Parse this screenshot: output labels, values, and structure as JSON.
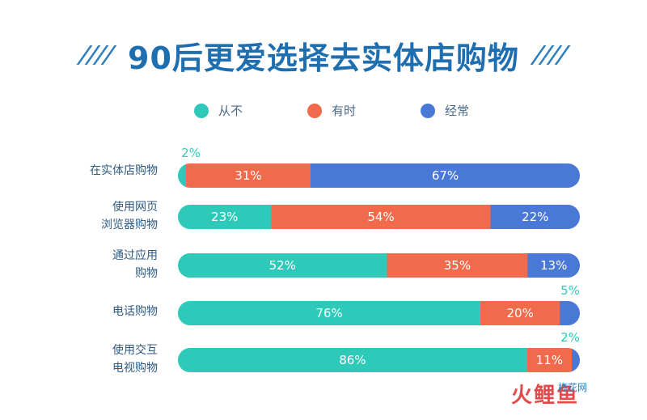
{
  "title": "90后更爱选择去实体店购物",
  "legend": [
    {
      "label": "从不",
      "color": "#2ec9b8"
    },
    {
      "label": "有时",
      "color": "#f06a4b"
    },
    {
      "label": "经常",
      "color": "#4a78d6"
    }
  ],
  "chart_data": {
    "type": "bar",
    "orientation": "horizontal",
    "stacked": true,
    "value_unit": "%",
    "categories": [
      [
        "在实体店购物"
      ],
      [
        "使用网页",
        "浏览器购物"
      ],
      [
        "通过应用",
        "购物"
      ],
      [
        "电话购物"
      ],
      [
        "使用交互",
        "电视购物"
      ]
    ],
    "series": [
      {
        "name": "从不",
        "color": "#2ec9b8",
        "values": [
          2,
          23,
          52,
          76,
          86
        ]
      },
      {
        "name": "有时",
        "color": "#f06a4b",
        "values": [
          31,
          54,
          35,
          20,
          11
        ]
      },
      {
        "name": "经常",
        "color": "#4a78d6",
        "values": [
          67,
          22,
          13,
          5,
          2
        ]
      }
    ],
    "data_labels": [
      [
        "2%",
        "31%",
        "67%"
      ],
      [
        "23%",
        "54%",
        "22%"
      ],
      [
        "52%",
        "35%",
        "13%"
      ],
      [
        "76%",
        "20%",
        "5%"
      ],
      [
        "86%",
        "11%",
        "2%"
      ]
    ],
    "outside_label_color": "#2ec9b8"
  },
  "watermark": {
    "main": "火鲤鱼",
    "sub": "梅花网"
  }
}
